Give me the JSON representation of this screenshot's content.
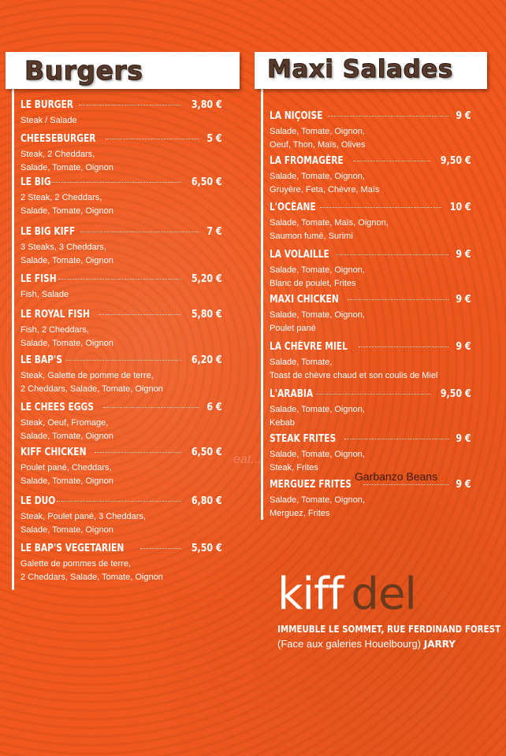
{
  "burgers": {
    "title": "Burgers",
    "items": [
      {
        "name": "LE BURGER",
        "price": "3,80 €",
        "desc": "Steak / Salade"
      },
      {
        "name": "CHEESEBURGER",
        "price": "5 €",
        "desc": "Steak, 2 Cheddars,\nSalade, Tomate, Oignon"
      },
      {
        "name": "LE BIG",
        "price": "6,50 €",
        "desc": "2 Steak, 2 Cheddars,\nSalade, Tomate, Oignon"
      },
      {
        "name": "LE BIG KIFF",
        "price": "7 €",
        "desc": "3 Steaks, 3 Cheddars,\nSalade, Tomate, Oignon"
      },
      {
        "name": "LE FISH",
        "price": "5,20 €",
        "desc": "Fish, Salade"
      },
      {
        "name": "LE ROYAL FISH",
        "price": "5,80 €",
        "desc": " Fish, 2 Cheddars,\n Salade, Tomate, Oignon"
      },
      {
        "name": "LE BAP'S",
        "price": "6,20 €",
        "desc": "Steak, Galette de pomme de terre,\n2 Cheddars, Salade, Tomate, Oignon"
      },
      {
        "name": "LE CHEES EGGS",
        "price": "6 €",
        "desc": " Steak, Oeuf, Fromage,\n Salade, Tomate, Oignon"
      },
      {
        "name": "KIFF CHICKEN",
        "price": "6,50 €",
        "desc": "Poulet pané, Cheddars,\nSalade, Tomate, Oignon"
      },
      {
        "name": "LE DUO",
        "price": "6,80 €",
        "desc": "Steak, Poulet pané, 3 Cheddars,\nSalade, Tomate, Oignon"
      },
      {
        "name": "LE BAP'S VEGETARIEN",
        "price": "5,50 €",
        "desc": "Galette de pommes de terre,\n2 Cheddars, Salade, Tomate, Oignon"
      }
    ]
  },
  "salades": {
    "title": "Maxi Salades",
    "items": [
      {
        "name": "LA NIÇOISE",
        "price": "9 €",
        "desc": "Salade, Tomate, Oignon,\nOeuf, Thon, Maïs, Olives"
      },
      {
        "name": "LA FROMAGÈRE",
        "price": "9,50 €",
        "desc": "Salade, Tomate, Oignon,\nGruyère, Feta, Chèvre, Maïs"
      },
      {
        "name": "L'OCÉANE",
        "price": "10 €",
        "desc": "Salade, Tomate, Maïs, Oignon,\nSaumon fumé, Surimi"
      },
      {
        "name": "LA VOLAILLE",
        "price": "9 €",
        "desc": "Salade, Tomate, Oignon,\nBlanc de poulet, Frites"
      },
      {
        "name": "MAXI CHICKEN",
        "price": "9 €",
        "desc": "Salade, Tomate, Oignon,\nPoulet pané"
      },
      {
        "name": "LA CHÈVRE MIEL",
        "price": "9 €",
        "desc": "Salade, Tomate,\nToast de chèvre chaud et son coulis de Miel"
      },
      {
        "name": "L'ARABIA",
        "price": "9,50 €",
        "desc": "Salade, Tomate, Oignon,\nKebab"
      },
      {
        "name": "STEAK FRITES",
        "price": "9 €",
        "desc": "Salade, Tomate, Oignon,\nSteak, Frites"
      },
      {
        "name": "MERGUEZ FRITES",
        "price": "9 €",
        "desc": "Salade, Tomate, Oignon,\nMerguez, Frites"
      }
    ]
  },
  "brand": {
    "kiff": "kiff",
    "del": "del"
  },
  "address": {
    "line1": "IMMEUBLE LE SOMMET, RUE FERDINAND FOREST",
    "line2": "(Face aux galeries Houelbourg)",
    "line2_bold": "JARRY"
  },
  "overlay_text": "Garbanzo Beans",
  "watermark": "eat..."
}
